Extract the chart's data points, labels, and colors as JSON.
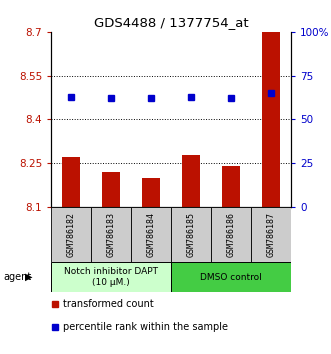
{
  "title": "GDS4488 / 1377754_at",
  "samples": [
    "GSM786182",
    "GSM786183",
    "GSM786184",
    "GSM786185",
    "GSM786186",
    "GSM786187"
  ],
  "bar_values": [
    8.27,
    8.22,
    8.2,
    8.28,
    8.24,
    8.7
  ],
  "percentile_values": [
    63,
    62,
    62,
    63,
    62,
    65
  ],
  "ylim_left": [
    8.1,
    8.7
  ],
  "ylim_right": [
    0,
    100
  ],
  "yticks_left": [
    8.1,
    8.25,
    8.4,
    8.55,
    8.7
  ],
  "ytick_labels_left": [
    "8.1",
    "8.25",
    "8.4",
    "8.55",
    "8.7"
  ],
  "yticks_right": [
    0,
    25,
    50,
    75,
    100
  ],
  "ytick_labels_right": [
    "0",
    "25",
    "50",
    "75",
    "100%"
  ],
  "bar_color": "#bb1100",
  "dot_color": "#0000cc",
  "grid_ticks": [
    8.25,
    8.4,
    8.55
  ],
  "group1_label": "Notch inhibitor DAPT\n(10 μM.)",
  "group2_label": "DMSO control",
  "group1_color": "#ccffcc",
  "group2_color": "#44cc44",
  "group1_indices": [
    0,
    1,
    2
  ],
  "group2_indices": [
    3,
    4,
    5
  ],
  "bar_base": 8.1,
  "agent_label": "agent",
  "legend_bar_label": "transformed count",
  "legend_dot_label": "percentile rank within the sample",
  "sample_box_color": "#cccccc"
}
